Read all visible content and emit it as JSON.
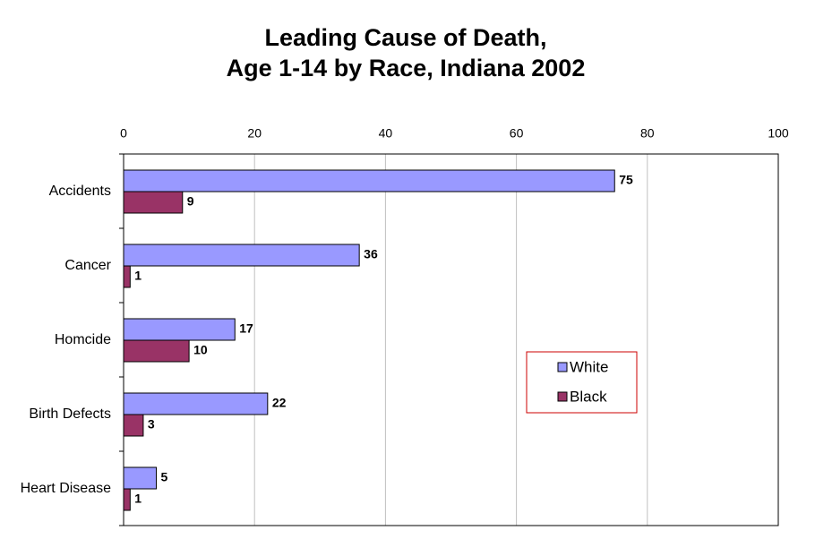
{
  "chart_data": {
    "type": "bar",
    "orientation": "horizontal",
    "title": [
      "Leading Cause of Death,",
      "Age 1-14 by Race, Indiana 2002"
    ],
    "categories": [
      "Accidents",
      "Cancer",
      "Homcide",
      "Birth Defects",
      "Heart Disease"
    ],
    "series": [
      {
        "name": "White",
        "color": "#9999ff",
        "values": [
          75,
          36,
          17,
          22,
          5
        ]
      },
      {
        "name": "Black",
        "color": "#993366",
        "values": [
          9,
          1,
          10,
          3,
          1
        ]
      }
    ],
    "xlim": [
      0,
      100
    ],
    "xticks": [
      0,
      20,
      40,
      60,
      80,
      100
    ],
    "grid": true,
    "legend": "right"
  }
}
